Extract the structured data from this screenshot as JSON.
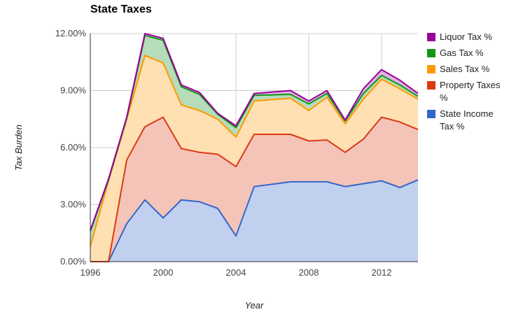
{
  "chart_data": {
    "type": "area",
    "stacked": true,
    "title": "State Taxes",
    "xlabel": "Year",
    "ylabel": "Tax Burden",
    "x": [
      1996,
      1997,
      1998,
      1999,
      2000,
      2001,
      2002,
      2003,
      2004,
      2005,
      2007,
      2008,
      2009,
      2010,
      2011,
      2012,
      2013,
      2014
    ],
    "xlim": [
      1996,
      2014
    ],
    "ylim": [
      0,
      12
    ],
    "x_ticks": [
      "1996",
      "2000",
      "2004",
      "2008",
      "2012"
    ],
    "y_ticks": [
      "0.00%",
      "3.00%",
      "6.00%",
      "9.00%",
      "12.00%"
    ],
    "legend_position": "right",
    "grid": true,
    "series": [
      {
        "name": "State Income Tax %",
        "color": "#3366cc",
        "fill": "#c1d0ef",
        "values": [
          0,
          0,
          2.0,
          3.25,
          2.3,
          3.25,
          3.15,
          2.8,
          1.35,
          3.95,
          4.2,
          4.2,
          4.2,
          3.95,
          4.1,
          4.25,
          3.9,
          4.3
        ]
      },
      {
        "name": "Property Taxes %",
        "color": "#dc3912",
        "fill": "#f4c4b8",
        "values": [
          0,
          0,
          3.35,
          3.85,
          5.3,
          2.7,
          2.6,
          2.85,
          3.65,
          2.75,
          2.5,
          2.15,
          2.2,
          1.8,
          2.35,
          3.35,
          3.45,
          2.65
        ]
      },
      {
        "name": "Sales Tax %",
        "color": "#ff9900",
        "fill": "#ffe0b3",
        "values": [
          0.8,
          4.25,
          2.15,
          3.75,
          2.85,
          2.3,
          2.2,
          1.85,
          1.55,
          1.75,
          1.9,
          1.6,
          2.25,
          1.5,
          2.1,
          2.0,
          1.75,
          1.6
        ]
      },
      {
        "name": "Gas Tax %",
        "color": "#109618",
        "fill": "#b7dcb9",
        "values": [
          0.8,
          0.05,
          0.05,
          1.05,
          1.2,
          0.95,
          0.85,
          0.25,
          0.5,
          0.3,
          0.2,
          0.35,
          0.2,
          0.15,
          0.3,
          0.2,
          0.2,
          0.15
        ]
      },
      {
        "name": "Liquor Tax %",
        "color": "#990099",
        "fill": "#e0b3e0",
        "values": [
          0.05,
          0.05,
          0.05,
          0.1,
          0.1,
          0.1,
          0.1,
          0.05,
          0.1,
          0.1,
          0.2,
          0.15,
          0.15,
          0.05,
          0.25,
          0.3,
          0.25,
          0.15
        ]
      }
    ]
  },
  "legend": {
    "items": [
      {
        "label": "Liquor Tax %",
        "color": "#990099"
      },
      {
        "label": "Gas Tax %",
        "color": "#109618"
      },
      {
        "label": "Sales Tax %",
        "color": "#ff9900"
      },
      {
        "label": "Property Taxes %",
        "color": "#dc3912"
      },
      {
        "label": "State Income Tax %",
        "color": "#3366cc"
      }
    ]
  }
}
